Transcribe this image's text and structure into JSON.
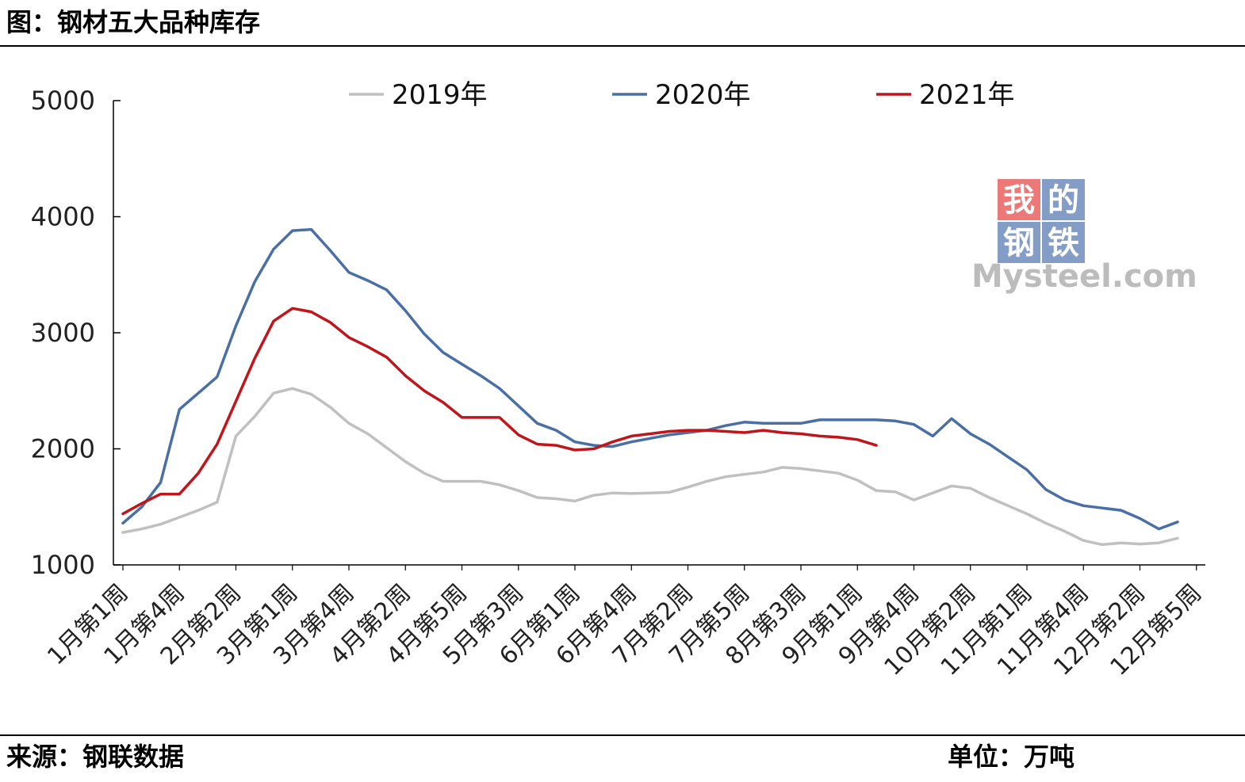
{
  "header": {
    "title": "图：钢材五大品种库存"
  },
  "footer": {
    "source": "来源：钢联数据",
    "unit": "单位：万吨"
  },
  "watermark": {
    "chars": [
      "我",
      "的",
      "钢",
      "铁"
    ],
    "text": "Mysteel.com",
    "colors": {
      "red": "#e64b4b",
      "blue": "#5b7db3",
      "grey": "#a6a6a6"
    }
  },
  "chart_data": {
    "type": "line",
    "ylim": [
      1000,
      5000
    ],
    "yticks": [
      1000,
      2000,
      3000,
      4000,
      5000
    ],
    "grid": false,
    "legend_position": "top-center",
    "xtick_labels": [
      "1月第1周",
      "1月第4周",
      "2月第2周",
      "3月第1周",
      "3月第4周",
      "4月第2周",
      "4月第5周",
      "5月第3周",
      "6月第1周",
      "6月第4周",
      "7月第2周",
      "7月第5周",
      "8月第3周",
      "9月第1周",
      "9月第4周",
      "10月第2周",
      "11月第1周",
      "11月第4周",
      "12月第2周",
      "12月第5周"
    ],
    "series": [
      {
        "name": "2019年",
        "color": "#c0c0c0",
        "values": [
          1280,
          1310,
          1350,
          1410,
          1470,
          1540,
          2110,
          2280,
          2480,
          2520,
          2470,
          2360,
          2220,
          2130,
          2010,
          1890,
          1790,
          1720,
          1720,
          1720,
          1690,
          1640,
          1580,
          1570,
          1550,
          1600,
          1620,
          1615,
          1620,
          1625,
          1670,
          1720,
          1760,
          1780,
          1800,
          1840,
          1830,
          1810,
          1790,
          1730,
          1640,
          1630,
          1560,
          1620,
          1680,
          1660,
          1580,
          1510,
          1440,
          1360,
          1290,
          1210,
          1175,
          1190,
          1180,
          1190,
          1230
        ]
      },
      {
        "name": "2020年",
        "color": "#4a6fa5",
        "values": [
          1360,
          1500,
          1710,
          2340,
          2480,
          2620,
          3060,
          3440,
          3720,
          3880,
          3890,
          3710,
          3520,
          3450,
          3370,
          3190,
          2990,
          2830,
          2730,
          2630,
          2520,
          2370,
          2220,
          2160,
          2060,
          2030,
          2020,
          2060,
          2090,
          2120,
          2140,
          2160,
          2200,
          2230,
          2220,
          2220,
          2220,
          2250,
          2250,
          2250,
          2250,
          2240,
          2210,
          2110,
          2260,
          2130,
          2040,
          1930,
          1820,
          1650,
          1560,
          1510,
          1490,
          1470,
          1400,
          1310,
          1370
        ]
      },
      {
        "name": "2021年",
        "color": "#c0151a",
        "values": [
          1440,
          1530,
          1610,
          1610,
          1790,
          2040,
          2410,
          2780,
          3100,
          3210,
          3180,
          3090,
          2960,
          2880,
          2790,
          2630,
          2500,
          2400,
          2270,
          2270,
          2270,
          2120,
          2040,
          2030,
          1990,
          2000,
          2060,
          2110,
          2130,
          2150,
          2160,
          2160,
          2150,
          2140,
          2160,
          2140,
          2130,
          2110,
          2100,
          2080,
          2030
        ]
      }
    ]
  }
}
